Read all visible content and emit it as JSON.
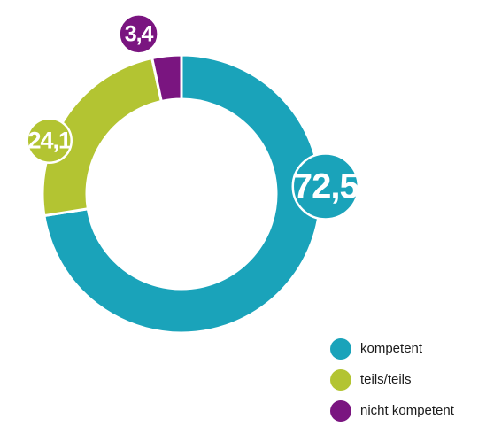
{
  "chart_data": {
    "type": "pie",
    "style": "donut",
    "categories": [
      "kompetent",
      "teils/teils",
      "nicht kompetent"
    ],
    "values": [
      72.5,
      24.1,
      3.4
    ],
    "labels": [
      "72,5",
      "24,1",
      "3,4"
    ],
    "colors": [
      "#1aa3ba",
      "#b3c432",
      "#7a1580"
    ],
    "legend_placement": "bottom-right"
  }
}
